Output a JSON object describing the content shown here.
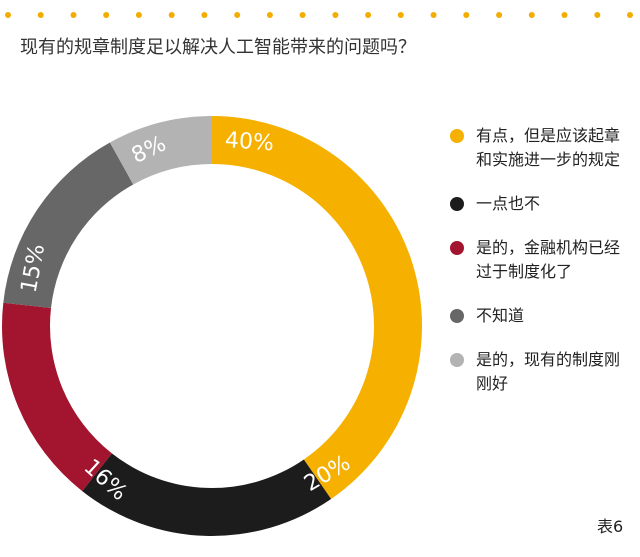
{
  "header": {
    "question": "现有的规章制度足以解决人工智能带来的问题吗？",
    "dot_color": "#f2ad00",
    "dot_count": 20
  },
  "chart_data": {
    "type": "pie",
    "style": "donut",
    "start": "top",
    "direction": "clockwise",
    "slices": [
      {
        "label": "有点，但是应该起章和实施进一步的规定",
        "value": 40,
        "value_text": "40%",
        "color": "#f5b000",
        "label_color": "#ffffff"
      },
      {
        "label": "一点也不",
        "value": 20,
        "value_text": "20%",
        "color": "#1c1c1c",
        "label_color": "#ffffff"
      },
      {
        "label": "是的，金融机构已经过于制度化了",
        "value": 16,
        "value_text": "16%",
        "color": "#a3142f",
        "label_color": "#ffffff"
      },
      {
        "label": "不知道",
        "value": 15,
        "value_text": "15%",
        "color": "#676767",
        "label_color": "#ffffff"
      },
      {
        "label": "是的，现有的制度刚刚好",
        "value": 8,
        "value_text": "8%",
        "color": "#b3b3b3",
        "label_color": "#ffffff"
      }
    ]
  },
  "legend": {
    "placement": "right",
    "items": [
      {
        "text": "有点，但是应该起章和实施进一步的规定",
        "color": "#f5b000"
      },
      {
        "text": "一点也不",
        "color": "#1c1c1c"
      },
      {
        "text": "是的，金融机构已经过于制度化了",
        "color": "#a3142f"
      },
      {
        "text": "不知道",
        "color": "#676767"
      },
      {
        "text": "是的，现有的制度刚刚好",
        "color": "#b3b3b3"
      }
    ]
  },
  "footer": {
    "table_label": "表6"
  }
}
